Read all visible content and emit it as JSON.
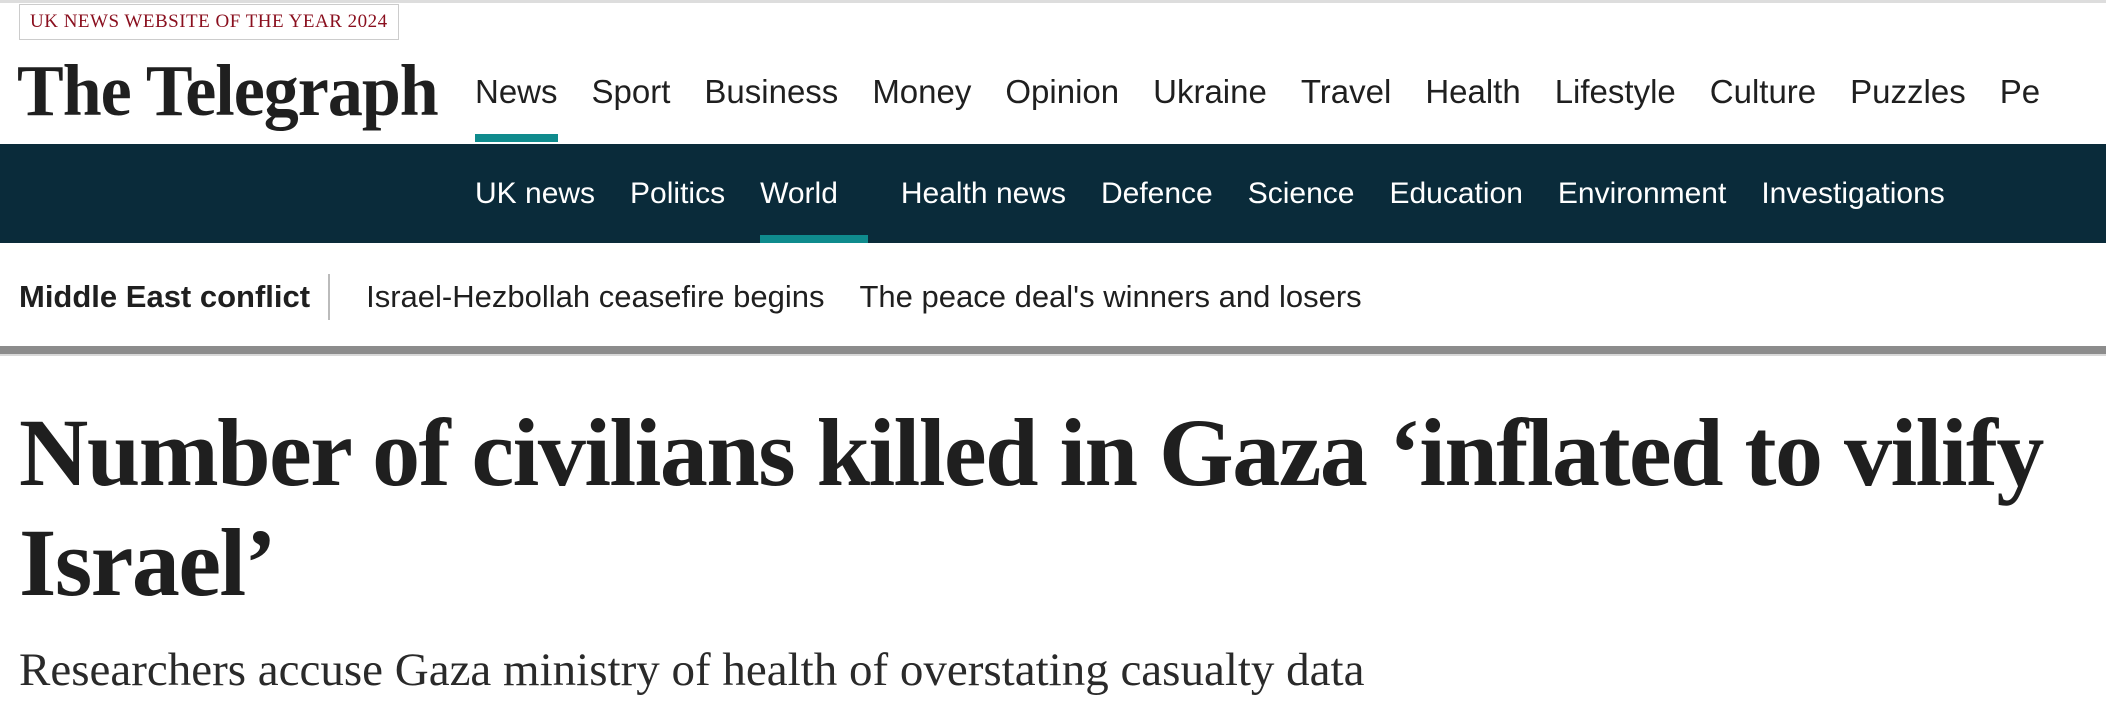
{
  "header": {
    "badge": "UK NEWS WEBSITE OF THE YEAR 2024",
    "logo": "The Telegraph"
  },
  "nav": {
    "items": [
      "News",
      "Sport",
      "Business",
      "Money",
      "Opinion",
      "Ukraine",
      "Travel",
      "Health",
      "Lifestyle",
      "Culture",
      "Puzzles",
      "Pe"
    ]
  },
  "subnav": {
    "items": [
      "UK news",
      "Politics",
      "World",
      "Health news",
      "Defence",
      "Science",
      "Education",
      "Environment",
      "Investigations"
    ]
  },
  "topics": {
    "label": "Middle East conflict",
    "links": [
      "Israel-Hezbollah ceasefire begins",
      "The peace deal's winners and losers"
    ]
  },
  "article": {
    "headline": "Number of civilians killed in Gaza ‘inflated to vilify Israel’",
    "standfirst": "Researchers accuse Gaza ministry of health of overstating casualty data"
  }
}
